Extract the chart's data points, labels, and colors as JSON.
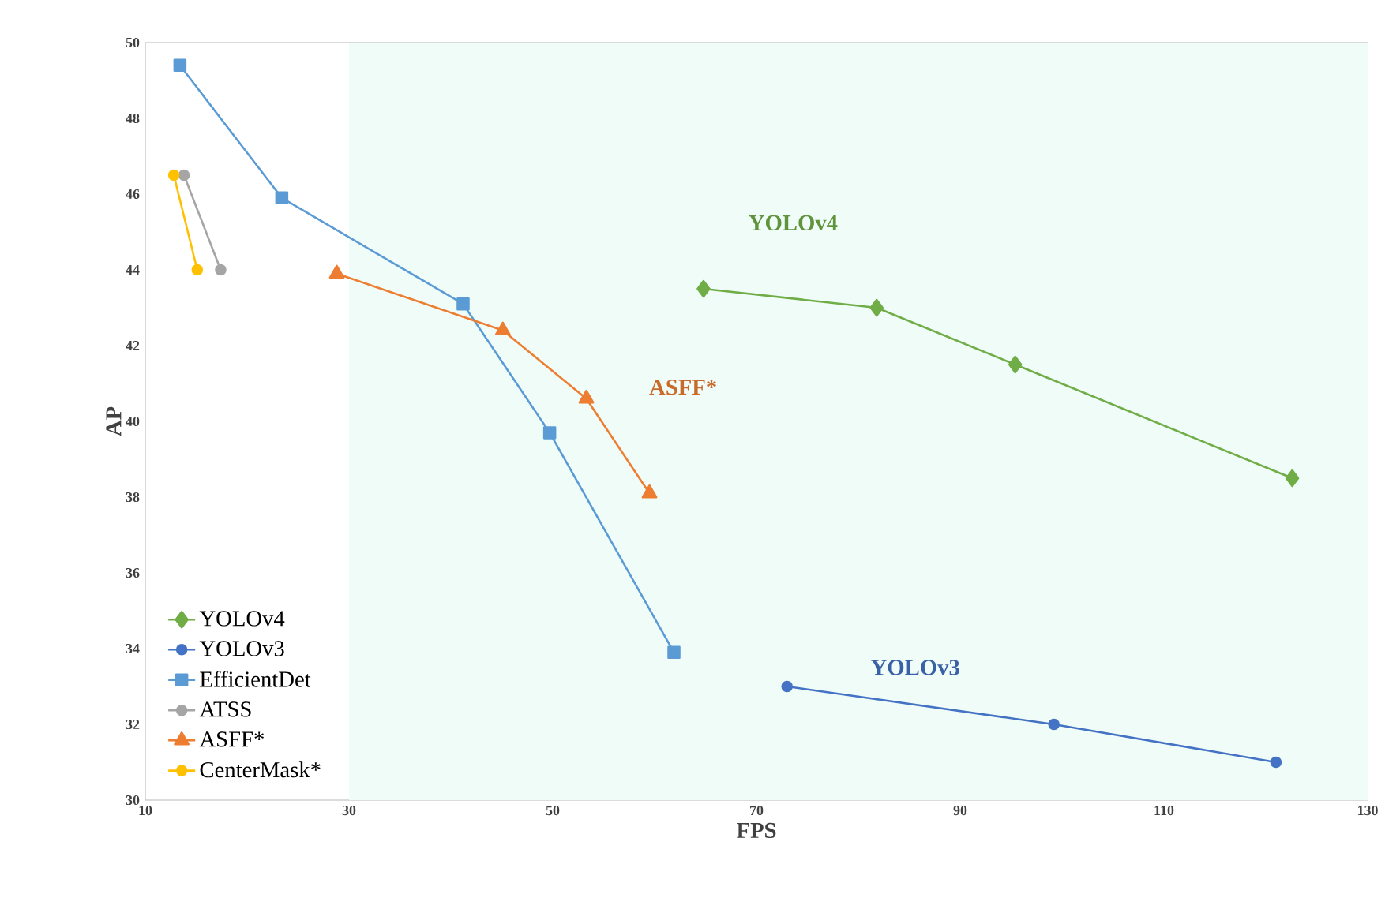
{
  "chart_data": {
    "type": "line",
    "xlabel": "FPS",
    "ylabel": "AP",
    "xlim": [
      10,
      130
    ],
    "xticks": [
      10,
      30,
      50,
      70,
      90,
      110,
      130
    ],
    "ylim": [
      30,
      50
    ],
    "yticks": [
      30,
      32,
      34,
      36,
      38,
      40,
      42,
      44,
      46,
      48,
      50
    ],
    "legend": "bottom left",
    "bands": [
      {
        "axis": "x",
        "from": 30,
        "to": 130,
        "color": "#effcf8"
      }
    ],
    "annotations": [
      "YOLOv4",
      "ASFF*",
      "YOLOv3"
    ],
    "series": [
      {
        "name": "YOLOv4",
        "color": "#70ad47",
        "marker": "diamond",
        "x": [
          64.8,
          81.8,
          95.4,
          122.6
        ],
        "values": [
          43.5,
          43.0,
          41.5,
          38.5
        ]
      },
      {
        "name": "YOLOv3",
        "color": "#4472c4",
        "marker": "circle",
        "x": [
          73.0,
          99.2,
          121.0
        ],
        "values": [
          33.0,
          32.0,
          31.0
        ]
      },
      {
        "name": "EfficientDet",
        "color": "#5b9bd5",
        "marker": "square",
        "x": [
          13.4,
          23.4,
          41.2,
          49.7,
          61.9
        ],
        "values": [
          49.4,
          45.9,
          43.1,
          39.7,
          33.9
        ]
      },
      {
        "name": "ATSS",
        "color": "#a5a5a5",
        "marker": "circle",
        "x": [
          13.8,
          17.4
        ],
        "values": [
          46.5,
          44.0
        ]
      },
      {
        "name": "ASFF*",
        "color": "#ed7d31",
        "marker": "triangle",
        "x": [
          28.8,
          45.1,
          53.3,
          59.5
        ],
        "values": [
          43.9,
          42.4,
          40.6,
          38.1
        ]
      },
      {
        "name": "CenterMask*",
        "color": "#ffc000",
        "marker": "circle",
        "x": [
          12.8,
          15.1
        ],
        "values": [
          46.5,
          44.0
        ]
      }
    ]
  }
}
